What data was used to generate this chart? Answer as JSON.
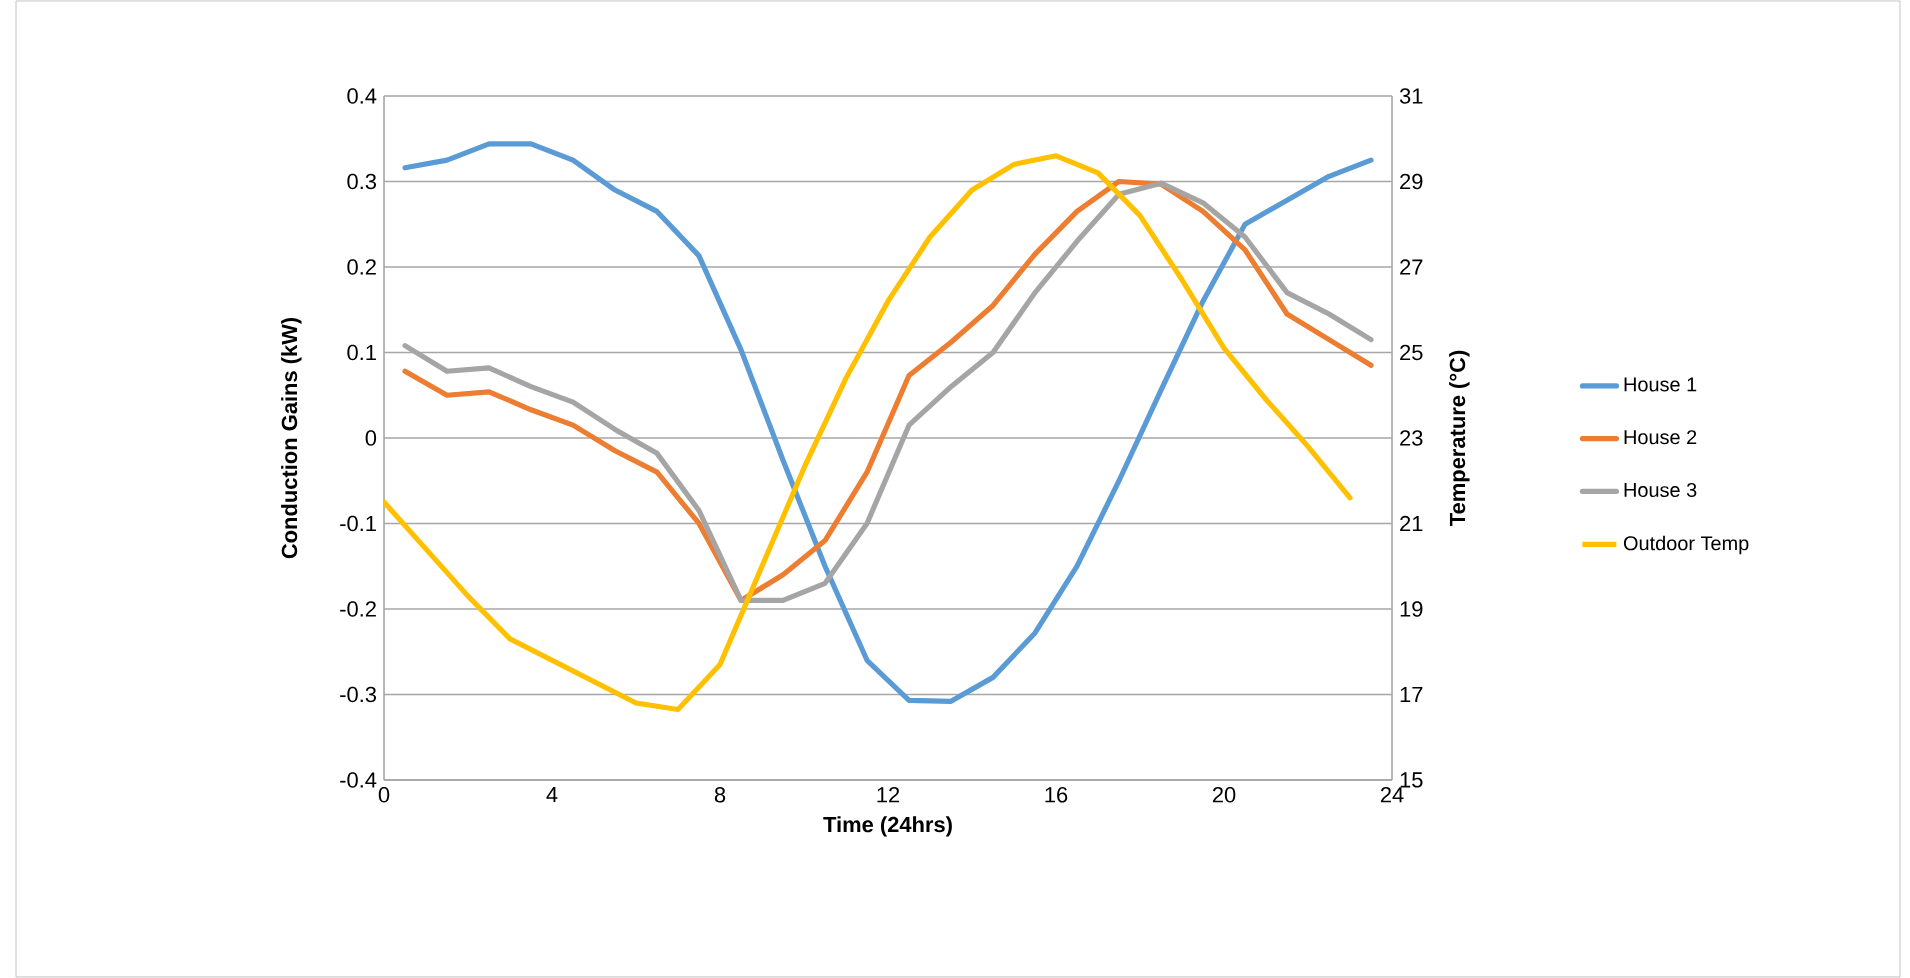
{
  "chart_data": {
    "type": "line",
    "xlabel": "Time (24hrs)",
    "ylabel": "Conduction Gains (kW)",
    "y2label": "Temperature (°C)",
    "xlim": [
      0,
      24
    ],
    "xticks": [
      0,
      4,
      8,
      12,
      16,
      20,
      24
    ],
    "ylim": [
      -0.4,
      0.4
    ],
    "yticks": [
      -0.4,
      -0.3,
      -0.2,
      -0.1,
      0,
      0.1,
      0.2,
      0.3,
      0.4
    ],
    "y2lim": [
      15,
      31
    ],
    "y2ticks": [
      15,
      17,
      19,
      21,
      23,
      25,
      27,
      29,
      31
    ],
    "grid": "y",
    "legend": "right",
    "series": [
      {
        "name": "House 1",
        "color": "#5b9bd5",
        "x": [
          0.5,
          1.5,
          2.5,
          3.5,
          4.5,
          5.5,
          6.5,
          7.5,
          8.5,
          9.5,
          10.5,
          11.5,
          12.5,
          13.5,
          14.5,
          15.5,
          16.5,
          17.5,
          18.5,
          19.5,
          20.5,
          21.5,
          22.5,
          23.5
        ],
        "values": [
          0.316,
          0.325,
          0.344,
          0.344,
          0.325,
          0.29,
          0.265,
          0.213,
          0.103,
          -0.026,
          -0.15,
          -0.26,
          -0.307,
          -0.308,
          -0.28,
          -0.228,
          -0.15,
          -0.05,
          0.056,
          0.16,
          0.25,
          0.278,
          0.306,
          0.325
        ]
      },
      {
        "name": "House 2",
        "color": "#ed7d31",
        "x": [
          0.5,
          1.5,
          2.5,
          3.5,
          4.5,
          5.5,
          6.5,
          7.5,
          8.5,
          9.5,
          10.5,
          11.5,
          12.5,
          13.5,
          14.5,
          15.5,
          16.5,
          17.5,
          18.5,
          19.5,
          20.5,
          21.5,
          22.5,
          23.5
        ],
        "values": [
          0.078,
          0.05,
          0.054,
          0.033,
          0.015,
          -0.015,
          -0.04,
          -0.1,
          -0.19,
          -0.16,
          -0.12,
          -0.04,
          0.073,
          0.112,
          0.155,
          0.215,
          0.265,
          0.3,
          0.297,
          0.265,
          0.22,
          0.145,
          0.115,
          0.085
        ]
      },
      {
        "name": "House 3",
        "color": "#a5a5a5",
        "x": [
          0.5,
          1.5,
          2.5,
          3.5,
          4.5,
          5.5,
          6.5,
          7.5,
          8.5,
          9.5,
          10.5,
          11.5,
          12.5,
          13.5,
          14.5,
          15.5,
          16.5,
          17.5,
          18.5,
          19.5,
          20.5,
          21.5,
          22.5,
          23.5
        ],
        "values": [
          0.108,
          0.078,
          0.082,
          0.06,
          0.042,
          0.01,
          -0.018,
          -0.085,
          -0.19,
          -0.19,
          -0.17,
          -0.1,
          0.015,
          0.06,
          0.1,
          0.17,
          0.23,
          0.285,
          0.298,
          0.275,
          0.235,
          0.17,
          0.145,
          0.115
        ]
      },
      {
        "name": "Outdoor Temp",
        "color": "#ffc000",
        "axis": "y2",
        "x": [
          0,
          1,
          2,
          3,
          4,
          5,
          6,
          7,
          8,
          9,
          10,
          11,
          12,
          13,
          14,
          15,
          16,
          17,
          18,
          19,
          20,
          21,
          22,
          23
        ],
        "values": [
          21.5,
          20.4,
          19.3,
          18.3,
          17.8,
          17.3,
          16.8,
          16.65,
          17.7,
          20,
          22.3,
          24.4,
          26.2,
          27.7,
          28.8,
          29.4,
          29.6,
          29.2,
          28.2,
          26.7,
          25.1,
          23.9,
          22.8,
          21.6
        ]
      }
    ]
  }
}
